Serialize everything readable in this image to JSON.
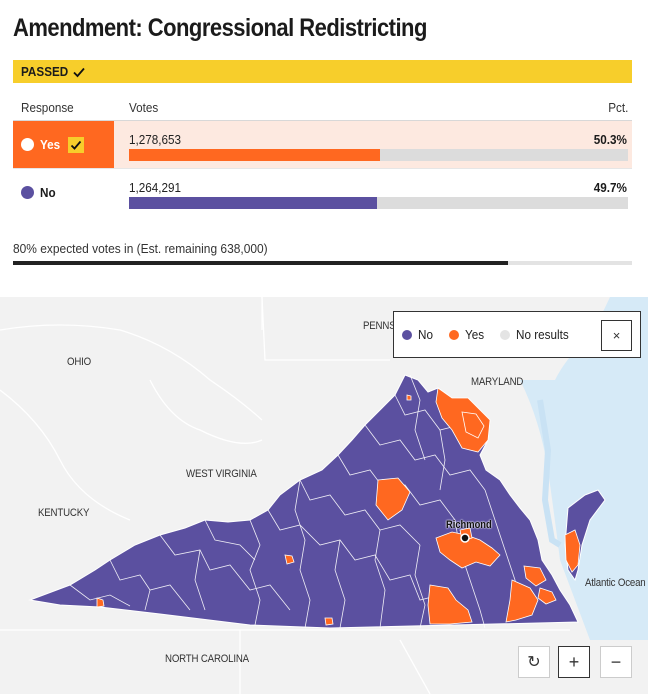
{
  "title": "Amendment: Congressional Redistricting",
  "status": {
    "label": "PASSED",
    "icon": "checkmark-icon",
    "color": "#f7ce2b"
  },
  "table": {
    "headers": {
      "response": "Response",
      "votes": "Votes",
      "pct": "Pct."
    },
    "rows": [
      {
        "response": "Yes",
        "votes": "1,278,653",
        "pct": "50.3%",
        "share": 0.503,
        "winner": true,
        "color": "#ff6820"
      },
      {
        "response": "No",
        "votes": "1,264,291",
        "pct": "49.7%",
        "share": 0.497,
        "winner": false,
        "color": "#5b50a0"
      }
    ]
  },
  "reporting": {
    "text": "80% expected votes in (Est. remaining 638,000)",
    "percent": 80
  },
  "map": {
    "labels": {
      "ohio": "OHIO",
      "penn": "PENNSY",
      "maryland": "MARYLAND",
      "west_virginia": "WEST VIRGINIA",
      "kentucky": "KENTUCKY",
      "north_carolina": "NORTH CAROLINA",
      "atlantic": "Atlantic Ocean",
      "city": "Richmond"
    },
    "legend": [
      {
        "label": "No",
        "color": "#5b50a0"
      },
      {
        "label": "Yes",
        "color": "#ff6820"
      },
      {
        "label": "No results",
        "color": "#e4e4e4"
      }
    ],
    "legend_close": "×",
    "controls": {
      "reset": "↻",
      "zoom_in": "+",
      "zoom_out": "−"
    }
  }
}
